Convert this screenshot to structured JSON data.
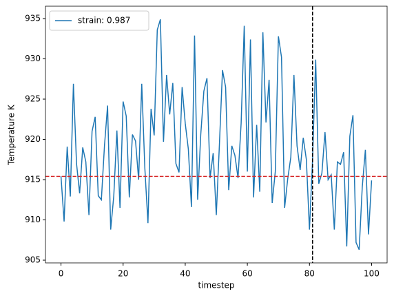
{
  "chart_data": {
    "type": "line",
    "xlabel": "timestep",
    "ylabel": "Temperature K",
    "x": [
      0,
      1,
      2,
      3,
      4,
      5,
      6,
      7,
      8,
      9,
      10,
      11,
      12,
      13,
      14,
      15,
      16,
      17,
      18,
      19,
      20,
      21,
      22,
      23,
      24,
      25,
      26,
      27,
      28,
      29,
      30,
      31,
      32,
      33,
      34,
      35,
      36,
      37,
      38,
      39,
      40,
      41,
      42,
      43,
      44,
      45,
      46,
      47,
      48,
      49,
      50,
      51,
      52,
      53,
      54,
      55,
      56,
      57,
      58,
      59,
      60,
      61,
      62,
      63,
      64,
      65,
      66,
      67,
      68,
      69,
      70,
      71,
      72,
      73,
      74,
      75,
      76,
      77,
      78,
      79,
      80,
      81,
      82,
      83,
      84,
      85,
      86,
      87,
      88,
      89,
      90,
      91,
      92,
      93,
      94,
      95,
      96,
      97,
      98,
      99,
      100
    ],
    "series": [
      {
        "name": "strain: 0.987",
        "color": "#1f77b4",
        "values": [
          915.4,
          909.8,
          919.1,
          912.9,
          926.9,
          917.0,
          913.3,
          919.0,
          917.2,
          910.6,
          921.0,
          922.8,
          913.0,
          912.5,
          919.2,
          924.2,
          908.8,
          913.0,
          921.1,
          911.5,
          924.7,
          922.9,
          912.8,
          920.6,
          919.8,
          915.0,
          926.9,
          916.4,
          909.6,
          923.8,
          920.5,
          933.6,
          934.9,
          919.7,
          928.0,
          923.1,
          927.0,
          917.0,
          915.9,
          926.5,
          922.0,
          918.8,
          911.6,
          932.9,
          912.5,
          920.6,
          926.0,
          927.6,
          915.2,
          918.3,
          910.6,
          919.3,
          928.6,
          926.5,
          913.7,
          919.2,
          918.0,
          915.2,
          922.0,
          934.1,
          916.0,
          932.4,
          912.8,
          921.8,
          913.5,
          933.3,
          922.1,
          927.4,
          912.1,
          916.0,
          932.8,
          930.2,
          911.5,
          915.1,
          917.8,
          928.0,
          919.2,
          916.2,
          920.2,
          917.5,
          908.8,
          917.5,
          929.9,
          914.5,
          915.8,
          920.9,
          915.0,
          915.6,
          908.8,
          917.2,
          916.9,
          918.4,
          906.7,
          920.4,
          923.0,
          907.2,
          906.3,
          914.1,
          918.7,
          908.2,
          914.9
        ]
      }
    ],
    "hline": {
      "value": 915.4,
      "color": "#d62728"
    },
    "vline": {
      "value": 81,
      "color": "#000000"
    },
    "xlim": [
      -5,
      105
    ],
    "xticks": [
      0,
      20,
      40,
      60,
      80,
      100
    ],
    "ylim": [
      904.66,
      936.54
    ],
    "yticks": [
      905,
      910,
      915,
      920,
      925,
      930,
      935
    ],
    "grid": false,
    "legend": "upper left"
  }
}
